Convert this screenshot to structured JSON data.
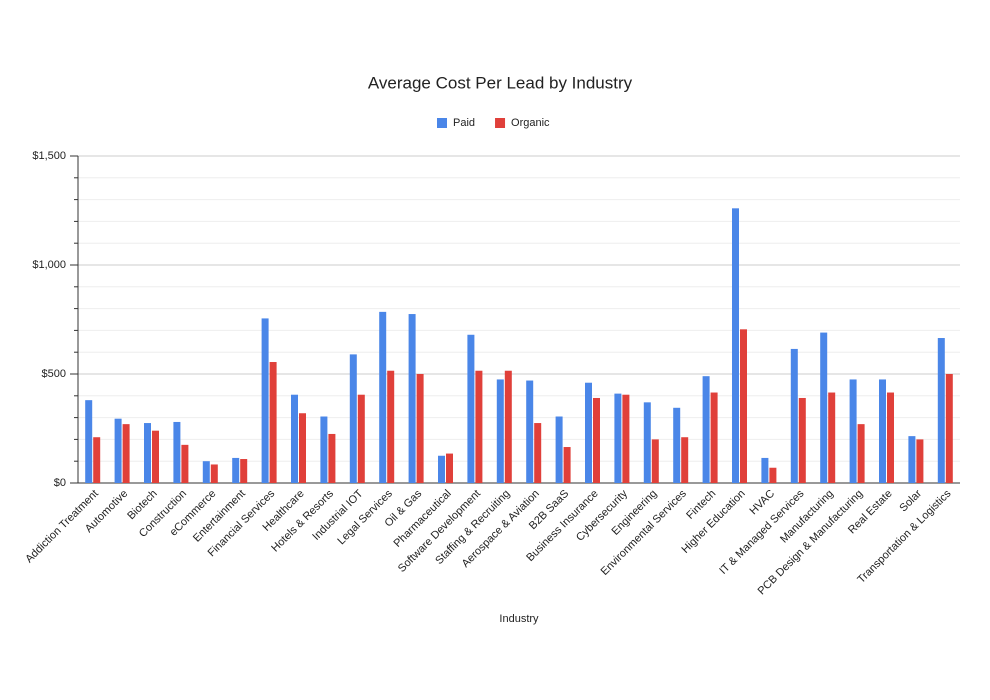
{
  "chart_data": {
    "type": "bar",
    "title": "Average Cost Per Lead by Industry",
    "x_label": "Industry",
    "categories": [
      "Addiction Treatment",
      "Automotive",
      "Biotech",
      "Construction",
      "eCommerce",
      "Entertainment",
      "Financial Services",
      "Healthcare",
      "Hotels & Resorts",
      "Industrial IOT",
      "Legal Services",
      "Oil & Gas",
      "Pharmaceutical",
      "Software Development",
      "Staffing & Recruiting",
      "Aerospace & Aviation",
      "B2B SaaS",
      "Business Insurance",
      "Cybersecurity",
      "Engineering",
      "Environmental Services",
      "Fintech",
      "Higher Education",
      "HVAC",
      "IT & Managed Services",
      "Manufacturing",
      "PCB Design & Manufacturing",
      "Real Estate",
      "Solar",
      "Transportation & Logistics"
    ],
    "series": [
      {
        "name": "Paid",
        "color": "#4a86e8",
        "values": [
          380,
          295,
          275,
          280,
          100,
          115,
          755,
          405,
          305,
          590,
          785,
          775,
          125,
          680,
          475,
          470,
          305,
          460,
          410,
          370,
          345,
          490,
          1260,
          115,
          615,
          690,
          475,
          475,
          215,
          665
        ]
      },
      {
        "name": "Organic",
        "color": "#e0403a",
        "values": [
          210,
          270,
          240,
          175,
          85,
          110,
          555,
          320,
          225,
          405,
          515,
          500,
          135,
          515,
          515,
          275,
          165,
          390,
          405,
          200,
          210,
          415,
          705,
          70,
          390,
          415,
          270,
          415,
          200,
          500
        ]
      }
    ],
    "ylim": [
      0,
      1500
    ],
    "yticks": [
      {
        "value": 0,
        "label": "$0"
      },
      {
        "value": 500,
        "label": "$500"
      },
      {
        "value": 1000,
        "label": "$1,000"
      },
      {
        "value": 1500,
        "label": "$1,500"
      }
    ],
    "minor_yticks": [
      100,
      200,
      300,
      400,
      600,
      700,
      800,
      900,
      1100,
      1200,
      1300,
      1400
    ],
    "grid": true,
    "legend": "top"
  }
}
